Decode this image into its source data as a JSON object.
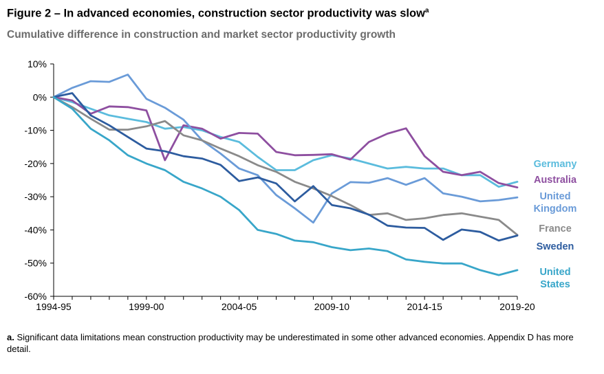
{
  "title": "Figure 2 – In advanced economies, construction sector productivity was slow",
  "title_superscript": "a",
  "subtitle": "Cumulative difference in construction and market sector productivity growth",
  "note": {
    "marker": "a.",
    "text": "Significant data limitations mean construction productivity may be underestimated in some other advanced economies. Appendix D has more detail."
  },
  "chart_data": {
    "type": "line",
    "title": "Cumulative difference in construction and market sector productivity growth",
    "xlabel": "",
    "ylabel": "",
    "ylim": [
      -60,
      10
    ],
    "yticks": [
      10,
      0,
      -10,
      -20,
      -30,
      -40,
      -50,
      -60
    ],
    "ytick_labels": [
      "10%",
      "0%",
      "-10%",
      "-20%",
      "-30%",
      "-40%",
      "-50%",
      "-60%"
    ],
    "xtick_labels": [
      {
        "index": 0,
        "label": "1994-95"
      },
      {
        "index": 5,
        "label": "1999-00"
      },
      {
        "index": 10,
        "label": "2004-05"
      },
      {
        "index": 15,
        "label": "2009-10"
      },
      {
        "index": 20,
        "label": "2014-15"
      },
      {
        "index": 25,
        "label": "2019-20"
      }
    ],
    "n_points": 26,
    "grid": false,
    "legend": "right, inline labels",
    "series": [
      {
        "name": "Germany",
        "color": "#5bbcdd",
        "values": [
          0,
          -1.5,
          -3.5,
          -5.5,
          -6.5,
          -7.5,
          -9.5,
          -9,
          -10,
          -12,
          -13.5,
          -18,
          -22,
          -22,
          -19,
          -17.5,
          -18.5,
          -20,
          -21.5,
          -21,
          -21.5,
          -21.5,
          -23.5,
          -23.5,
          -27,
          -25.5
        ]
      },
      {
        "name": "Australia",
        "color": "#8e4fa0",
        "values": [
          0,
          -1,
          -5,
          -2.8,
          -3,
          -4,
          -19,
          -8.5,
          -9.5,
          -12.5,
          -10.8,
          -11,
          -16.5,
          -17.5,
          -17.4,
          -17.2,
          -18.8,
          -13.5,
          -11,
          -9.4,
          -17.8,
          -22.5,
          -23.5,
          -22.5,
          -25.9,
          -27.2
        ]
      },
      {
        "name": "United Kingdom",
        "color": "#6a9bd8",
        "values": [
          0,
          2.8,
          4.8,
          4.6,
          6.8,
          -0.5,
          -3.2,
          -6.8,
          -13,
          -17,
          -21.5,
          -23.5,
          -29.5,
          -33.5,
          -37.8,
          -29,
          -25.6,
          -25.8,
          -24.4,
          -26.4,
          -24.4,
          -29,
          -30,
          -31.4,
          -31,
          -30.2
        ]
      },
      {
        "name": "France",
        "color": "#8a8a8a",
        "values": [
          0,
          -3,
          -6.5,
          -9.8,
          -9.8,
          -8.8,
          -7.2,
          -11.5,
          -13,
          -15.5,
          -17.8,
          -20.5,
          -22.5,
          -25.5,
          -27.5,
          -29.8,
          -32.5,
          -35.5,
          -35,
          -37,
          -36.5,
          -35.5,
          -35,
          -36,
          -37,
          -41.5
        ]
      },
      {
        "name": "Sweden",
        "color": "#2d5c9f",
        "values": [
          0,
          1.2,
          -5.5,
          -8.5,
          -12,
          -15.5,
          -16.3,
          -17.8,
          -18.5,
          -20.4,
          -25.3,
          -24.2,
          -26,
          -31.4,
          -26.8,
          -32.5,
          -33.5,
          -35.4,
          -38.7,
          -39.3,
          -39.4,
          -43,
          -39.9,
          -40.6,
          -43.2,
          -41.7
        ]
      },
      {
        "name": "United States",
        "color": "#38a6c9",
        "values": [
          0,
          -3.5,
          -9.5,
          -13,
          -17.5,
          -20,
          -22,
          -25.5,
          -27.5,
          -30,
          -34,
          -40,
          -41.2,
          -43.2,
          -43.7,
          -45.2,
          -46.1,
          -45.6,
          -46.4,
          -48.9,
          -49.6,
          -50.1,
          -50.1,
          -52.1,
          -53.6,
          -52.1
        ]
      }
    ],
    "inline_labels": [
      {
        "series": "Germany",
        "lines": [
          "Germany"
        ]
      },
      {
        "series": "Australia",
        "lines": [
          "Australia"
        ]
      },
      {
        "series": "United Kingdom",
        "lines": [
          "United",
          "Kingdom"
        ]
      },
      {
        "series": "France",
        "lines": [
          "France"
        ]
      },
      {
        "series": "Sweden",
        "lines": [
          "Sweden"
        ]
      },
      {
        "series": "United States",
        "lines": [
          "United",
          "States"
        ]
      }
    ]
  }
}
